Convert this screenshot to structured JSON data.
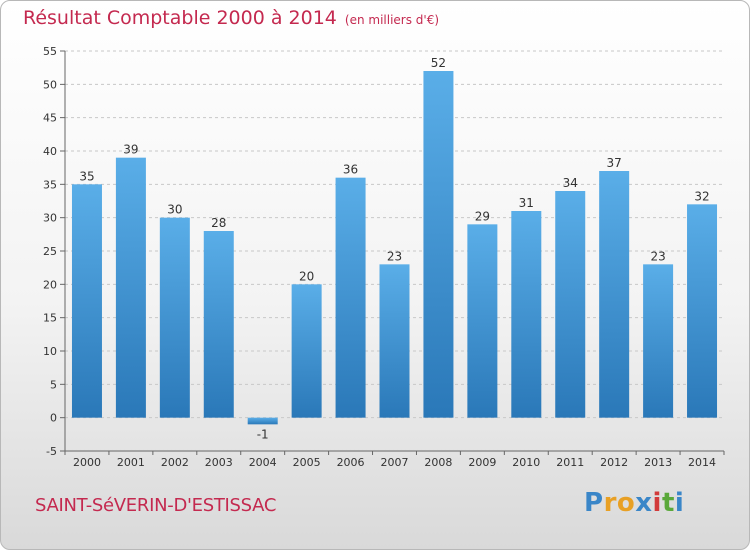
{
  "title": "Résultat Comptable 2000 à 2014",
  "subtitle": "(en milliers d'€)",
  "commune": "SAINT-SéVERIN-D'ESTISSAC",
  "logo": {
    "letters": [
      "P",
      "r",
      "o",
      "x",
      "i",
      "t",
      "i"
    ],
    "colors": [
      "#3a86c8",
      "#e8a024",
      "#e8a024",
      "#3a86c8",
      "#d23a3a",
      "#5aa83a",
      "#3a86c8"
    ]
  },
  "chart_data": {
    "type": "bar",
    "categories": [
      "2000",
      "2001",
      "2002",
      "2003",
      "2004",
      "2005",
      "2006",
      "2007",
      "2008",
      "2009",
      "2010",
      "2011",
      "2012",
      "2013",
      "2014"
    ],
    "values": [
      35,
      39,
      30,
      28,
      -1,
      20,
      36,
      23,
      52,
      29,
      31,
      34,
      37,
      23,
      32
    ],
    "labels": [
      "35",
      "39",
      "30",
      "28",
      "-1",
      "20",
      "36",
      "23",
      "52",
      "29",
      "31",
      "34",
      "37",
      "23",
      "32"
    ],
    "ylim": [
      -5,
      55
    ],
    "yticks": [
      -5,
      0,
      5,
      10,
      15,
      20,
      25,
      30,
      35,
      40,
      45,
      50,
      55
    ],
    "grid": true,
    "bar_color": "#3f94d6"
  }
}
